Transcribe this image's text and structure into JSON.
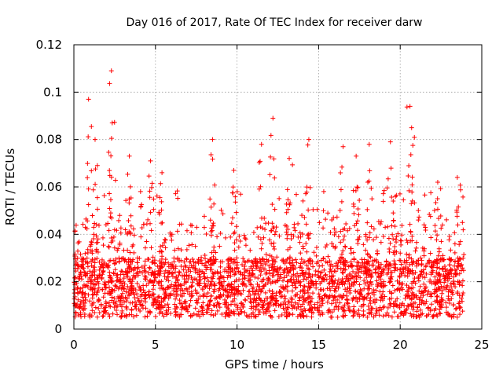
{
  "chart_data": {
    "type": "scatter",
    "title": "Day 016 of 2017, Rate Of TEC Index for receiver darw",
    "xlabel": "GPS time / hours",
    "ylabel": "ROTI / TECUs",
    "xlim": [
      0,
      25
    ],
    "ylim": [
      0,
      0.12
    ],
    "x_ticks": [
      "0",
      "5",
      "10",
      "15",
      "20",
      "25"
    ],
    "y_ticks": [
      "0",
      "0.02",
      "0.04",
      "0.06",
      "0.08",
      "0.1",
      "0.12"
    ],
    "x_tick_values": [
      0,
      5,
      10,
      15,
      20,
      25
    ],
    "y_tick_values": [
      0,
      0.02,
      0.04,
      0.06,
      0.08,
      0.1,
      0.12
    ],
    "grid": true,
    "marker": "+",
    "color": "#ff0000",
    "series": [
      {
        "name": "ROTI",
        "x_range": [
          0,
          23.9
        ],
        "baseline_range": [
          0.005,
          0.03
        ],
        "peaks": [
          {
            "x": 0.9,
            "y": 0.097
          },
          {
            "x": 1.3,
            "y": 0.08
          },
          {
            "x": 2.3,
            "y": 0.109
          },
          {
            "x": 2.35,
            "y": 0.087
          },
          {
            "x": 3.4,
            "y": 0.073
          },
          {
            "x": 4.7,
            "y": 0.071
          },
          {
            "x": 5.4,
            "y": 0.066
          },
          {
            "x": 8.5,
            "y": 0.08
          },
          {
            "x": 9.8,
            "y": 0.067
          },
          {
            "x": 11.5,
            "y": 0.078
          },
          {
            "x": 12.2,
            "y": 0.089
          },
          {
            "x": 13.2,
            "y": 0.072
          },
          {
            "x": 14.4,
            "y": 0.08
          },
          {
            "x": 16.5,
            "y": 0.077
          },
          {
            "x": 17.3,
            "y": 0.073
          },
          {
            "x": 18.1,
            "y": 0.078
          },
          {
            "x": 19.4,
            "y": 0.079
          },
          {
            "x": 20.6,
            "y": 0.094
          },
          {
            "x": 20.7,
            "y": 0.085
          },
          {
            "x": 22.3,
            "y": 0.062
          },
          {
            "x": 23.5,
            "y": 0.064
          }
        ]
      }
    ]
  }
}
